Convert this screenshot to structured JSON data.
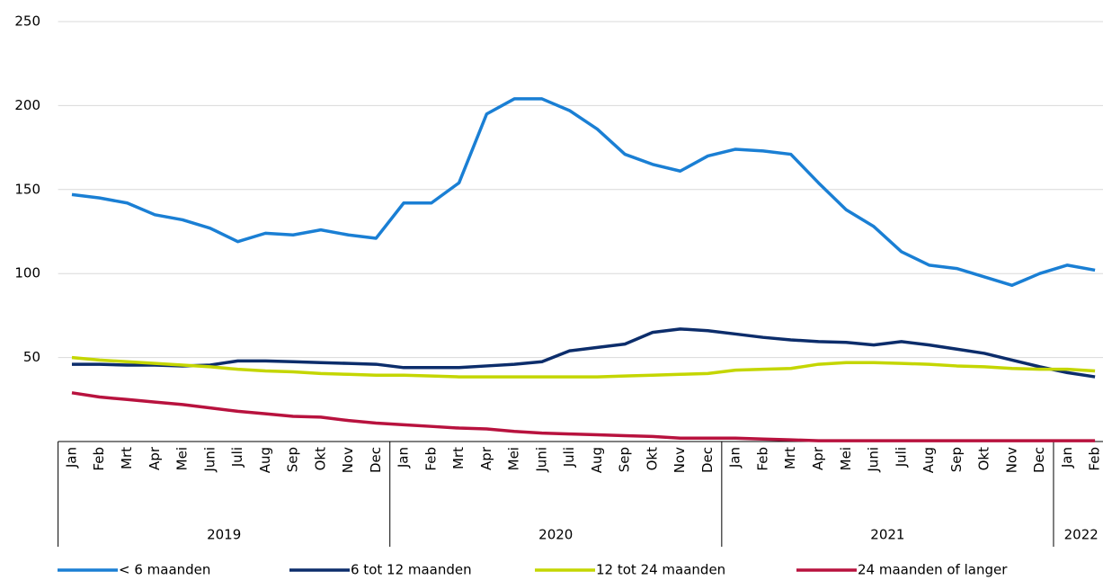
{
  "chart_data": {
    "type": "line",
    "categories": [
      "Jan",
      "Feb",
      "Mrt",
      "Apr",
      "Mei",
      "Juni",
      "Juli",
      "Aug",
      "Sep",
      "Okt",
      "Nov",
      "Dec",
      "Jan",
      "Feb",
      "Mrt",
      "Apr",
      "Mei",
      "Juni",
      "Juli",
      "Aug",
      "Sep",
      "Okt",
      "Nov",
      "Dec",
      "Jan",
      "Feb",
      "Mrt",
      "Apr",
      "Mei",
      "Juni",
      "Juli",
      "Aug",
      "Sep",
      "Okt",
      "Nov",
      "Dec",
      "Jan",
      "Feb"
    ],
    "groups": [
      {
        "label": "2019",
        "count": 12
      },
      {
        "label": "2020",
        "count": 12
      },
      {
        "label": "2021",
        "count": 12
      },
      {
        "label": "2022",
        "count": 2
      }
    ],
    "series": [
      {
        "name": "< 6 maanden",
        "color": "#1a7fd4",
        "values": [
          147,
          145,
          142,
          135,
          132,
          127,
          119,
          124,
          123,
          126,
          123,
          121,
          142,
          142,
          154,
          195,
          204,
          204,
          197,
          186,
          171,
          165,
          161,
          170,
          174,
          173,
          171,
          154,
          138,
          128,
          113,
          105,
          103,
          98,
          93,
          100,
          105,
          102
        ]
      },
      {
        "name": "6 tot 12 maanden",
        "color": "#0c2d6b",
        "values": [
          46,
          46,
          45.5,
          45.5,
          45,
          45.5,
          48,
          48,
          47.5,
          47,
          46.5,
          46,
          44,
          44,
          44,
          45,
          46,
          47.5,
          54,
          56,
          58,
          65,
          67,
          66,
          64,
          62,
          60.5,
          59.5,
          59,
          57.5,
          59.5,
          57.5,
          55,
          52.5,
          48.5,
          44.5,
          41,
          38.5
        ]
      },
      {
        "name": "12 tot 24 maanden",
        "color": "#c4d600",
        "values": [
          50,
          48.5,
          47.5,
          46.5,
          45.5,
          44.5,
          43,
          42,
          41.5,
          40.5,
          40,
          39.5,
          39.5,
          39,
          38.5,
          38.5,
          38.5,
          38.5,
          38.5,
          38.5,
          39,
          39.5,
          40,
          40.5,
          42.5,
          43,
          43.5,
          46,
          47,
          47,
          46.5,
          46,
          45,
          44.5,
          43.5,
          43,
          43,
          42
        ]
      },
      {
        "name": "24 maanden of langer",
        "color": "#b8123e",
        "values": [
          29,
          26.5,
          25,
          23.5,
          22,
          20,
          18,
          16.5,
          15,
          14.5,
          12.5,
          11,
          10,
          9,
          8,
          7.5,
          6,
          5,
          4.5,
          4,
          3.5,
          3,
          2,
          2,
          2,
          1.5,
          1,
          0.5,
          0.5,
          0.5,
          0.5,
          0.5,
          0.5,
          0.5,
          0.5,
          0.5,
          0.5,
          0.5
        ]
      }
    ],
    "ylim": [
      0,
      250
    ],
    "yticks": [
      50,
      100,
      150,
      200,
      250
    ],
    "grid": true
  }
}
